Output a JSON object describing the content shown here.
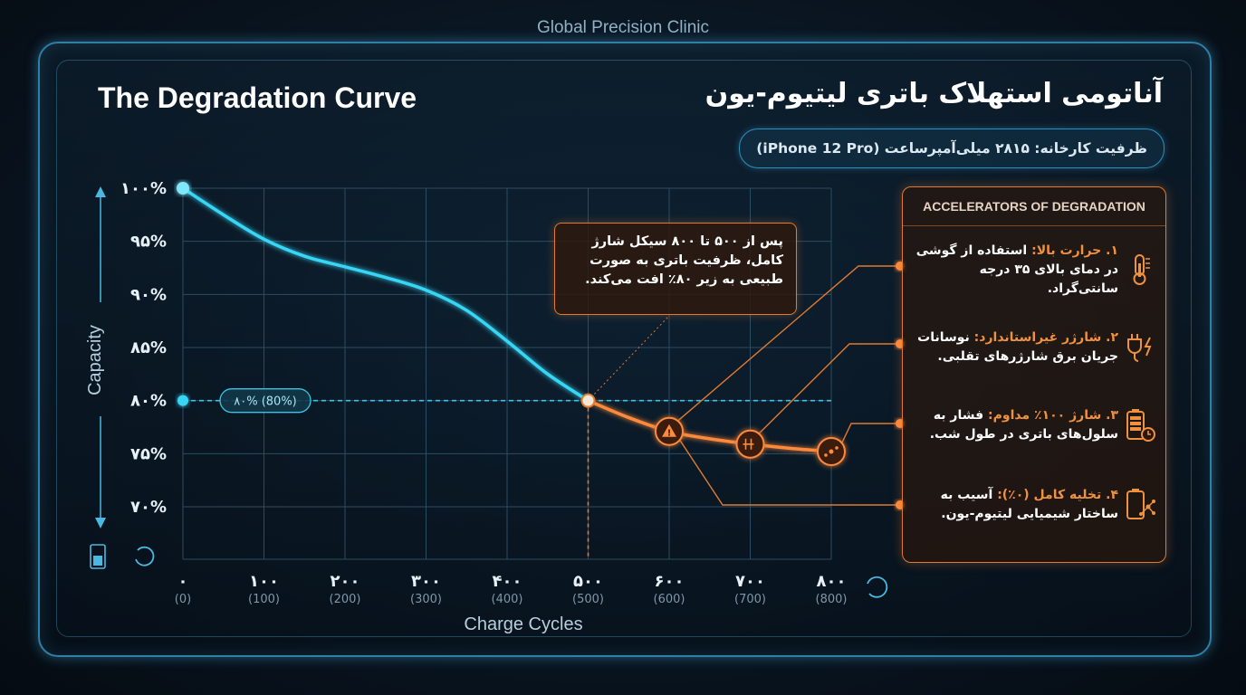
{
  "header": {
    "clinic": "Global Precision Clinic",
    "title_en": "The Degradation Curve",
    "title_fa": "آناتومی استهلاک باتری لیتیوم-یون",
    "spec": "ظرفیت کارخانه: ۲۸۱۵ میلی‌آمپرساعت (iPhone 12 Pro)"
  },
  "callout": {
    "text": "پس از ۵۰۰ تا ۸۰۰ سیکل شارژ کامل، ظرفیت باتری به صورت طبیعی به زیر ۸۰٪ افت می‌کند."
  },
  "accelerators": {
    "title": "ACCELERATORS OF DEGRADATION",
    "items": [
      {
        "label": "۱. حرارت بالا:",
        "desc": " استفاده از گوشی در دمای بالای ۳۵ درجه سانتی‌گراد.",
        "icon": "thermometer-icon"
      },
      {
        "label": "۲. شارژر غیراستاندارد:",
        "desc": " نوسانات جریان برق شارژرهای تقلبی.",
        "icon": "charger-plug-icon"
      },
      {
        "label": "۳. شارژ ۱۰۰٪ مداوم:",
        "desc": " فشار به سلول‌های باتری در طول شب.",
        "icon": "battery-clock-icon"
      },
      {
        "label": "۴. تخلیه کامل (۰٪):",
        "desc": " آسیب به ساختار شیمیایی لیتیوم-یون.",
        "icon": "battery-molecule-icon"
      }
    ]
  },
  "colors": {
    "healthy_line": "#39d6f5",
    "degraded_line": "#ff8a3a",
    "grid": "#2a4d63",
    "accent_orange": "#e07a2e"
  },
  "chart_data": {
    "type": "line",
    "xlabel": "Charge Cycles",
    "ylabel": "Capacity",
    "x_ticks": [
      {
        "main": "۰",
        "sub": "(0)"
      },
      {
        "main": "۱۰۰",
        "sub": "(100)"
      },
      {
        "main": "۲۰۰",
        "sub": "(200)"
      },
      {
        "main": "۳۰۰",
        "sub": "(300)"
      },
      {
        "main": "۴۰۰",
        "sub": "(400)"
      },
      {
        "main": "۵۰۰",
        "sub": "(500)"
      },
      {
        "main": "۶۰۰",
        "sub": "(600)"
      },
      {
        "main": "۷۰۰",
        "sub": "(700)"
      },
      {
        "main": "۸۰۰",
        "sub": "(800)"
      }
    ],
    "y_ticks": [
      {
        "value": 100,
        "label": "۱۰۰%"
      },
      {
        "value": 95,
        "label": "۹۵%"
      },
      {
        "value": 90,
        "label": "۹۰%"
      },
      {
        "value": 85,
        "label": "۸۵%"
      },
      {
        "value": 80,
        "label": "۸۰%"
      },
      {
        "value": 75,
        "label": "۷۵%"
      },
      {
        "value": 70,
        "label": "۷۰%"
      }
    ],
    "xlim": [
      0,
      800
    ],
    "ylim": [
      70,
      100
    ],
    "threshold": {
      "value": 80,
      "label": "۸۰% (80%)"
    },
    "series": [
      {
        "points": [
          [
            0,
            100
          ],
          [
            50,
            97.5
          ],
          [
            100,
            95.2
          ],
          [
            150,
            93.6
          ],
          [
            200,
            92.6
          ],
          [
            250,
            91.6
          ],
          [
            300,
            90.4
          ],
          [
            350,
            88.5
          ],
          [
            400,
            85.6
          ],
          [
            450,
            82.5
          ],
          [
            500,
            80
          ]
        ]
      },
      {
        "points": [
          [
            500,
            80
          ],
          [
            550,
            78.4
          ],
          [
            600,
            77.1
          ],
          [
            650,
            76.4
          ],
          [
            700,
            75.9
          ],
          [
            750,
            75.5
          ],
          [
            800,
            75.2
          ]
        ]
      }
    ],
    "grid": true
  }
}
